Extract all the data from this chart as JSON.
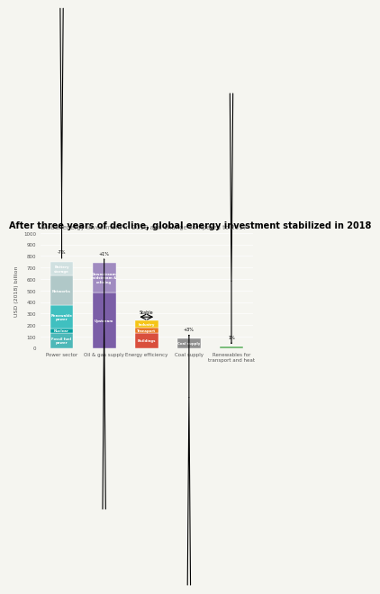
{
  "title": "After three years of decline, global energy investment stabilized in 2018",
  "subtitle": "Global energy investment in 2018 and change compared to 2017",
  "ylabel": "USD (2018) billion",
  "ylim": [
    0,
    1000
  ],
  "yticks": [
    0,
    100,
    200,
    300,
    400,
    500,
    600,
    700,
    800,
    900,
    1000
  ],
  "categories": [
    "Power sector",
    "Oil & gas supply",
    "Energy efficiency",
    "Coal supply",
    "Renewables for\ntransport and heat"
  ],
  "bars": [
    {
      "segments": [
        {
          "label": "Fossil fuel\npower",
          "value": 130,
          "color": "#4db8b8"
        },
        {
          "label": "Nuclear",
          "value": 40,
          "color": "#00a0a0"
        },
        {
          "label": "Renewable\npower",
          "value": 200,
          "color": "#40c0c0"
        },
        {
          "label": "Networks",
          "value": 260,
          "color": "#b0c8c8"
        },
        {
          "label": "Battery\nstorage",
          "value": 120,
          "color": "#d0e0e0"
        }
      ],
      "total": 750,
      "change": "-7%",
      "arrow": "down"
    },
    {
      "segments": [
        {
          "label": "Upstream",
          "value": 480,
          "color": "#7b5ea7"
        },
        {
          "label": "Downstream\nmidstream &\nrefining",
          "value": 260,
          "color": "#a08bc0"
        }
      ],
      "total": 740,
      "change": "+1%",
      "arrow": "up"
    },
    {
      "segments": [
        {
          "label": "Buildings",
          "value": 130,
          "color": "#d94f3d"
        },
        {
          "label": "Transport",
          "value": 50,
          "color": "#e87722"
        },
        {
          "label": "Industry",
          "value": 60,
          "color": "#f5c518"
        }
      ],
      "total": 240,
      "change": "Stable",
      "arrow": "none"
    },
    {
      "segments": [
        {
          "label": "Coal supply",
          "value": 80,
          "color": "#909090"
        }
      ],
      "total": 80,
      "change": "+3%",
      "arrow": "up"
    },
    {
      "segments": [
        {
          "label": "Renewables",
          "value": 10,
          "color": "#5aad5a"
        }
      ],
      "total": 10,
      "change": "1%",
      "arrow": "down"
    }
  ],
  "background_color": "#f5f5f0",
  "title_fontsize": 7,
  "subtitle_fontsize": 5,
  "axis_fontsize": 4.5,
  "tick_fontsize": 4
}
